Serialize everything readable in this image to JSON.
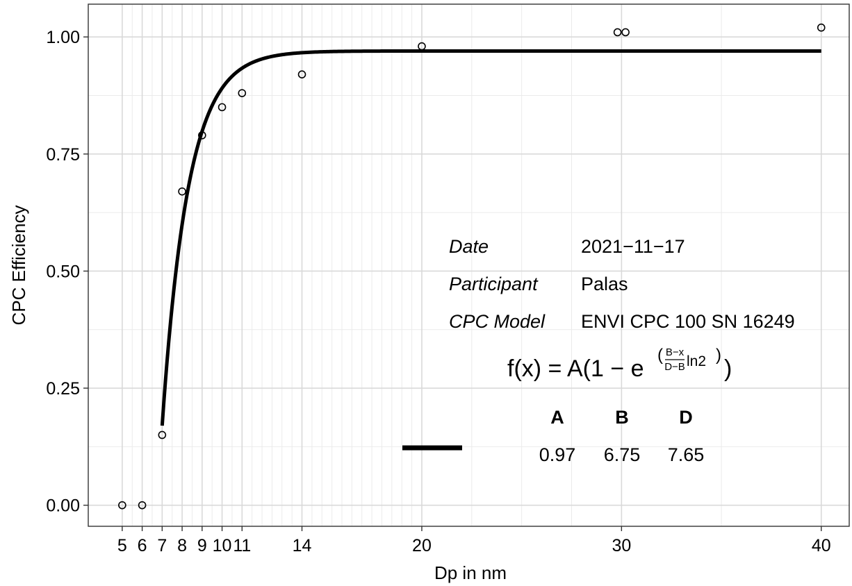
{
  "chart_data": {
    "type": "scatter",
    "xlabel": "Dp in nm",
    "ylabel": "CPC Efficiency",
    "xlim": [
      3.3,
      41.4
    ],
    "ylim": [
      -0.045,
      1.07
    ],
    "x_ticks": [
      5,
      6,
      7,
      8,
      9,
      10,
      11,
      14,
      20,
      30,
      40
    ],
    "x_minor_gridlines": [
      5.5,
      6.5,
      7.5,
      8.5,
      9.5,
      10.5,
      11.5,
      12,
      12.5,
      13,
      13.5,
      14.5,
      15,
      15.5,
      16,
      16.5,
      17,
      17.5,
      18,
      18.5,
      19,
      19.5,
      22.5,
      25,
      27.5,
      35
    ],
    "y_ticks": [
      0.0,
      0.25,
      0.5,
      0.75,
      1.0
    ],
    "y_tick_labels": [
      "0.00",
      "0.25",
      "0.50",
      "0.75",
      "1.00"
    ],
    "grid": true,
    "series": [
      {
        "type": "scatter",
        "points": [
          {
            "x": 5,
            "y": 0.0
          },
          {
            "x": 6,
            "y": 0.0
          },
          {
            "x": 7,
            "y": 0.15
          },
          {
            "x": 8,
            "y": 0.67
          },
          {
            "x": 9,
            "y": 0.79
          },
          {
            "x": 10,
            "y": 0.85
          },
          {
            "x": 11,
            "y": 0.88
          },
          {
            "x": 14,
            "y": 0.92
          },
          {
            "x": 20,
            "y": 0.98
          },
          {
            "x": 29.8,
            "y": 1.01
          },
          {
            "x": 30.2,
            "y": 1.01
          },
          {
            "x": 40,
            "y": 1.02
          }
        ]
      },
      {
        "type": "line",
        "fit": {
          "A": 0.97,
          "B": 6.75,
          "D": 7.65
        },
        "x_range": [
          7,
          40
        ]
      }
    ],
    "annotation": {
      "rows": [
        {
          "label": "Date",
          "value": "2021−11−17"
        },
        {
          "label": "Participant",
          "value": "Palas"
        },
        {
          "label": "CPC Model",
          "value": "ENVI CPC 100 SN 16249"
        }
      ],
      "formula": {
        "lhs": "f(x) = A(1 − e",
        "exp_num": "B−x",
        "exp_den": "D−B",
        "exp_tail": "ln2",
        "rhs": ")"
      },
      "param_headers": [
        "A",
        "B",
        "D"
      ],
      "param_values": [
        "0.97",
        "6.75",
        "7.65"
      ]
    }
  }
}
